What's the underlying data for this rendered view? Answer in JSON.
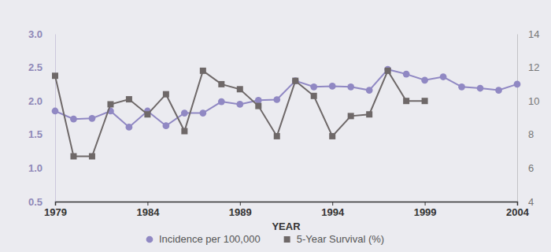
{
  "chart_data": {
    "type": "line",
    "x_label": "YEAR",
    "x": [
      1979,
      1980,
      1981,
      1982,
      1983,
      1984,
      1985,
      1986,
      1987,
      1988,
      1989,
      1990,
      1991,
      1992,
      1993,
      1994,
      1995,
      1996,
      1997,
      1998,
      1999,
      2000,
      2001,
      2002,
      2003,
      2004
    ],
    "xlim": [
      1979,
      2004
    ],
    "xticks": [
      1979,
      1984,
      1989,
      1994,
      1999,
      2004
    ],
    "ylim": [
      0.5,
      3.0
    ],
    "yticks": [
      0.5,
      {
        "value": 1,
        "label": "1.0"
      },
      1.5,
      {
        "value": 2,
        "label": "2.0"
      },
      2.5,
      {
        "value": 3,
        "label": "3.0"
      }
    ],
    "y2lim": [
      4,
      14
    ],
    "y2ticks": [
      4,
      6,
      8,
      10,
      12,
      14
    ],
    "grid": false,
    "legend": "bottom",
    "series": [
      {
        "name": "Incidence per 100,000",
        "color": "#9088c3",
        "marker": "circle",
        "line_style": "solid",
        "values": [
          1.85,
          1.73,
          1.74,
          1.85,
          1.61,
          1.85,
          1.63,
          1.82,
          1.82,
          1.99,
          1.95,
          2.01,
          2.02,
          2.3,
          2.21,
          2.22,
          2.21,
          2.16,
          2.47,
          2.4,
          2.31,
          2.36,
          2.21,
          2.19,
          2.16,
          2.25
        ]
      },
      {
        "name": "5-Year Survival (%)",
        "color": "#6e6868",
        "marker": "square",
        "line_style": "solid",
        "axis": "y2",
        "values": [
          11.5,
          6.7,
          6.7,
          9.8,
          10.1,
          9.2,
          10.4,
          8.2,
          11.8,
          11.0,
          10.7,
          9.7,
          7.9,
          11.2,
          10.3,
          7.9,
          9.1,
          9.2,
          11.8,
          10.0,
          10.0,
          null,
          null,
          null,
          null,
          null
        ]
      }
    ]
  }
}
